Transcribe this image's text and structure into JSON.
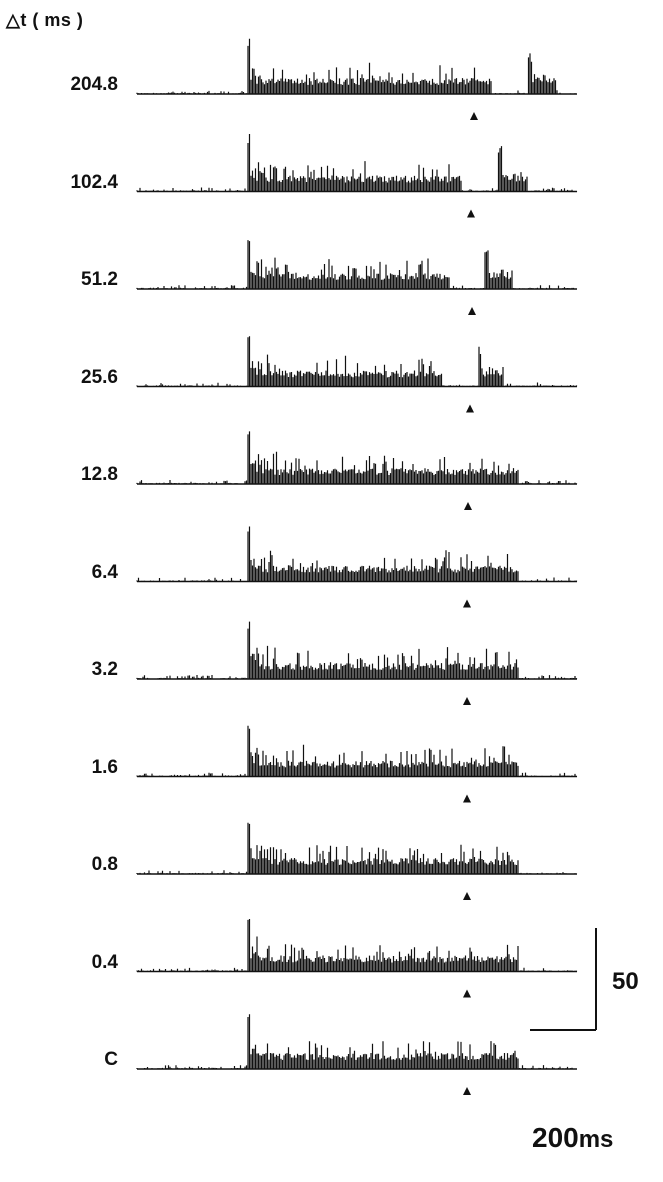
{
  "chart_data": {
    "type": "bar",
    "subtype": "stacked peristimulus time histograms",
    "y_axis_header": "△t ( ms )",
    "rows": [
      {
        "label": "204.8",
        "delta_t_ms": 204.8,
        "marker": true
      },
      {
        "label": "102.4",
        "delta_t_ms": 102.4,
        "marker": true
      },
      {
        "label": "51.2",
        "delta_t_ms": 51.2,
        "marker": true
      },
      {
        "label": "25.6",
        "delta_t_ms": 25.6,
        "marker": true
      },
      {
        "label": "12.8",
        "delta_t_ms": 12.8,
        "marker": true
      },
      {
        "label": "6.4",
        "delta_t_ms": 6.4,
        "marker": true
      },
      {
        "label": "3.2",
        "delta_t_ms": 3.2,
        "marker": true
      },
      {
        "label": "1.6",
        "delta_t_ms": 1.6,
        "marker": true
      },
      {
        "label": "0.8",
        "delta_t_ms": 0.8,
        "marker": true
      },
      {
        "label": "0.4",
        "delta_t_ms": 0.4,
        "marker": true
      },
      {
        "label": "C",
        "delta_t_ms": null,
        "marker": true
      }
    ],
    "scale_bar": {
      "vertical_value": 50,
      "vertical_label": "50",
      "horizontal_value": 200,
      "horizontal_label": "200",
      "horizontal_unit": "ms"
    },
    "bar_color": "#111111"
  }
}
